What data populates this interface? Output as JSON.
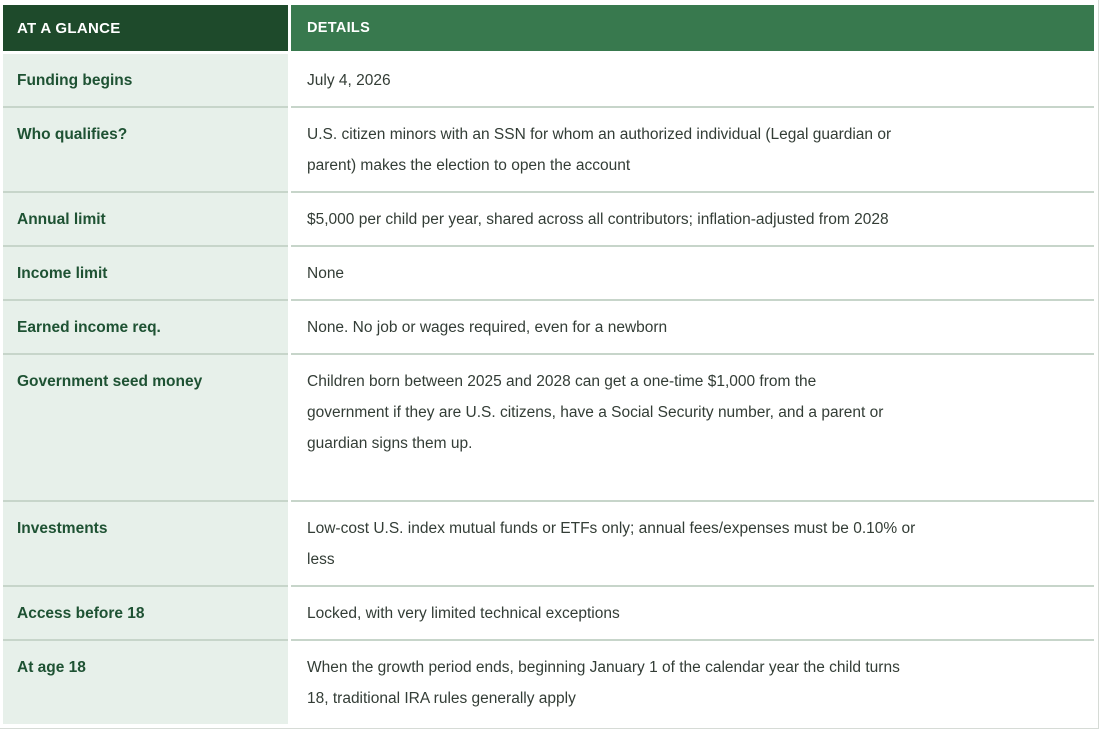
{
  "table": {
    "header": {
      "col1": "AT A GLANCE",
      "col2": "DETAILS"
    },
    "rows": [
      {
        "label": "Funding begins",
        "detail_lines": [
          "July 4, 2026"
        ]
      },
      {
        "label": "Who qualifies?",
        "detail_lines": [
          "U.S. citizen minors with an SSN for whom an authorized individual (Legal guardian or",
          "parent) makes the election to open the account"
        ]
      },
      {
        "label": "Annual limit",
        "detail_lines": [
          "$5,000 per child per year, shared across all contributors; inflation-adjusted from 2028"
        ]
      },
      {
        "label": "Income limit",
        "detail_lines": [
          "None"
        ]
      },
      {
        "label": "Earned income req.",
        "detail_lines": [
          "None. No job or wages required, even for a newborn"
        ]
      },
      {
        "label": "Government seed money",
        "detail_lines": [
          "Children born between 2025 and 2028 can get a one-time $1,000 from the",
          "government if they are U.S. citizens, have a Social Security number, and a parent or",
          "guardian signs them up."
        ]
      },
      {
        "label": "Investments",
        "detail_lines": [
          "Low-cost U.S. index mutual funds or ETFs only; annual fees/expenses must be 0.10% or",
          "less"
        ]
      },
      {
        "label": "Access before 18",
        "detail_lines": [
          "Locked, with very limited technical exceptions"
        ]
      },
      {
        "label": "At age 18",
        "detail_lines": [
          "When the growth period ends, beginning January 1 of the calendar year the child turns",
          "18, traditional IRA rules generally apply"
        ]
      }
    ],
    "colors": {
      "header_left_bg": "#1e4a2b",
      "header_right_bg": "#38794e",
      "label_cell_bg": "#e7f0ea",
      "label_text": "#1e5233",
      "detail_text": "#333d36",
      "row_divider": "#c7d5ca"
    }
  }
}
